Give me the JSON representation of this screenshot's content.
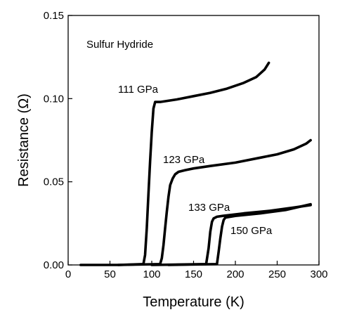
{
  "chart_data": {
    "type": "line",
    "title": "",
    "xlabel": "Temperature (K)",
    "ylabel": "Resistance (Ω)",
    "xlim": [
      0,
      300
    ],
    "ylim": [
      0,
      0.15
    ],
    "x_ticks": [
      0,
      50,
      100,
      150,
      200,
      250,
      300
    ],
    "y_ticks": [
      0.0,
      0.05,
      0.1,
      0.15
    ],
    "x_tick_labels": [
      "0",
      "50",
      "100",
      "150",
      "200",
      "250",
      "300"
    ],
    "y_tick_labels": [
      "0.00",
      "0.05",
      "0.10",
      "0.15"
    ],
    "grid": false,
    "legend": "none",
    "annotations": {
      "sample": "Sulfur Hydride"
    },
    "series": [
      {
        "name": "111 GPa",
        "color": "#000000",
        "x": [
          15,
          60,
          90,
          92,
          94,
          96,
          98,
          100,
          102,
          104,
          110,
          130,
          150,
          170,
          190,
          210,
          225,
          235,
          240
        ],
        "y": [
          0,
          0,
          0.0005,
          0.006,
          0.022,
          0.042,
          0.062,
          0.08,
          0.094,
          0.098,
          0.098,
          0.0995,
          0.1015,
          0.1035,
          0.106,
          0.1095,
          0.113,
          0.1175,
          0.1215
        ]
      },
      {
        "name": "123 GPa",
        "color": "#000000",
        "x": [
          60,
          110,
          112,
          114,
          116,
          118,
          120,
          122,
          125,
          128,
          132,
          140,
          150,
          170,
          200,
          230,
          250,
          270,
          285,
          290
        ],
        "y": [
          0,
          0.0005,
          0.004,
          0.012,
          0.022,
          0.032,
          0.041,
          0.048,
          0.052,
          0.0545,
          0.056,
          0.057,
          0.058,
          0.0595,
          0.0615,
          0.0645,
          0.0665,
          0.0695,
          0.073,
          0.075
        ]
      },
      {
        "name": "133 GPa",
        "color": "#000000",
        "x": [
          100,
          165,
          168,
          170,
          172,
          174,
          176,
          178,
          185,
          210,
          240,
          270,
          290
        ],
        "y": [
          0,
          0.0005,
          0.01,
          0.02,
          0.026,
          0.028,
          0.0285,
          0.029,
          0.0295,
          0.031,
          0.0325,
          0.0345,
          0.036
        ]
      },
      {
        "name": "150 GPa",
        "color": "#000000",
        "x": [
          120,
          178,
          180,
          182,
          184,
          186,
          188,
          200,
          230,
          260,
          290
        ],
        "y": [
          0,
          0.0005,
          0.008,
          0.016,
          0.023,
          0.027,
          0.0285,
          0.0295,
          0.031,
          0.033,
          0.0365
        ]
      }
    ]
  }
}
